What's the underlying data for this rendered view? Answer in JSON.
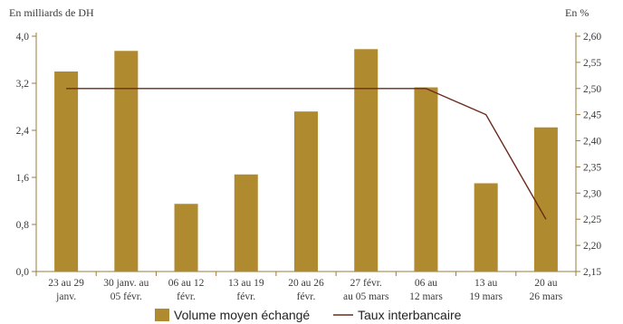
{
  "chart_data": {
    "type": "bar",
    "left_unit_label": "En milliards de DH",
    "right_unit_label": "En %",
    "categories": [
      [
        "23 au 29",
        "janv."
      ],
      [
        "30 janv. au",
        "05 févr."
      ],
      [
        "06 au 12",
        "févr."
      ],
      [
        "13 au 19",
        "févr."
      ],
      [
        "20 au 26",
        "févr."
      ],
      [
        "27 févr.",
        "au 05 mars"
      ],
      [
        "06 au",
        "12 mars"
      ],
      [
        "13 au",
        "19 mars"
      ],
      [
        "20 au",
        "26 mars"
      ]
    ],
    "series": [
      {
        "name": "Volume moyen échangé",
        "type": "bar",
        "axis": "left",
        "color": "#b08a2e",
        "values": [
          3.4,
          3.75,
          1.15,
          1.65,
          2.72,
          3.78,
          3.13,
          1.5,
          2.45
        ]
      },
      {
        "name": "Taux interbancaire",
        "type": "line",
        "axis": "right",
        "color": "#6b2a1c",
        "values": [
          2.5,
          2.5,
          2.5,
          2.5,
          2.5,
          2.5,
          2.5,
          2.45,
          2.25
        ]
      }
    ],
    "left_axis": {
      "min": 0,
      "max": 4.0,
      "ticks": [
        "0,0",
        "0,8",
        "1,6",
        "2,4",
        "3,2",
        "4,0"
      ],
      "tick_values": [
        0,
        0.8,
        1.6,
        2.4,
        3.2,
        4.0
      ]
    },
    "right_axis": {
      "min": 2.15,
      "max": 2.6,
      "ticks": [
        "2,15",
        "2,20",
        "2,25",
        "2,30",
        "2,35",
        "2,40",
        "2,45",
        "2,50",
        "2,55",
        "2,60"
      ],
      "tick_values": [
        2.15,
        2.2,
        2.25,
        2.3,
        2.35,
        2.4,
        2.45,
        2.5,
        2.55,
        2.6
      ]
    },
    "legend_position": "bottom",
    "grid": false,
    "axis_color": "#9a7b3a"
  }
}
